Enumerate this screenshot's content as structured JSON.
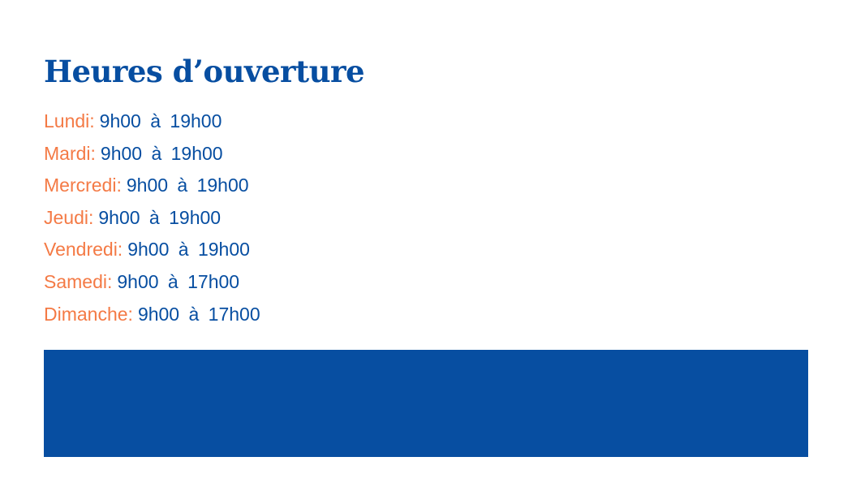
{
  "title": "Heures d’ouverture",
  "hours": [
    {
      "day": "Lundi:",
      "time": "9h00 à 19h00"
    },
    {
      "day": "Mardi:",
      "time": "9h00 à 19h00"
    },
    {
      "day": "Mercredi:",
      "time": "9h00 à 19h00"
    },
    {
      "day": "Jeudi:",
      "time": "9h00 à 19h00"
    },
    {
      "day": "Vendredi:",
      "time": "9h00 à 19h00"
    },
    {
      "day": "Samedi:",
      "time": "9h00 à 17h00"
    },
    {
      "day": "Dimanche:",
      "time": "9h00 à 17h00"
    }
  ],
  "colors": {
    "primary": "#074ea1",
    "accent": "#f47a45"
  }
}
